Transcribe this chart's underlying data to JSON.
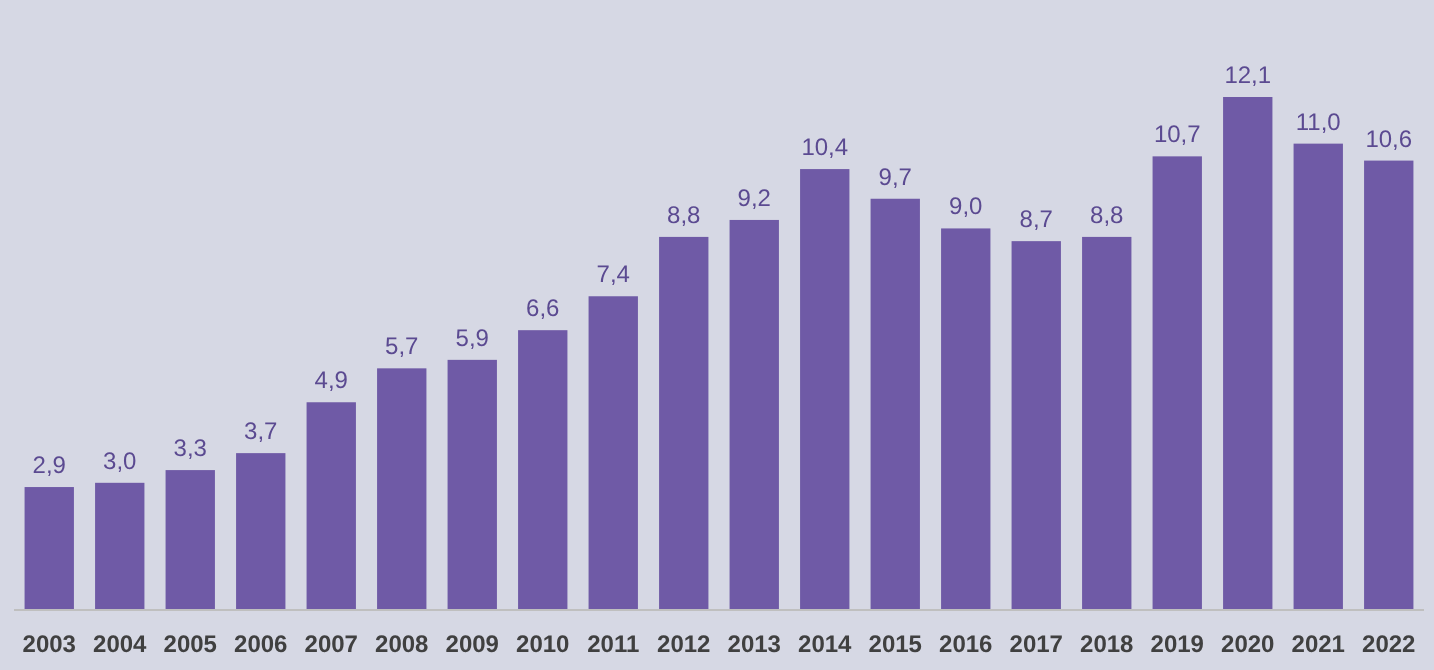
{
  "chart_data": {
    "type": "bar",
    "categories": [
      "2003",
      "2004",
      "2005",
      "2006",
      "2007",
      "2008",
      "2009",
      "2010",
      "2011",
      "2012",
      "2013",
      "2014",
      "2015",
      "2016",
      "2017",
      "2018",
      "2019",
      "2020",
      "2021",
      "2022"
    ],
    "values": [
      2.9,
      3.0,
      3.3,
      3.7,
      4.9,
      5.7,
      5.9,
      6.6,
      7.4,
      8.8,
      9.2,
      10.4,
      9.7,
      9.0,
      8.7,
      8.8,
      10.7,
      12.1,
      11.0,
      10.6
    ],
    "value_labels": [
      "2,9",
      "3,0",
      "3,3",
      "3,7",
      "4,9",
      "5,7",
      "5,9",
      "6,6",
      "7,4",
      "8,8",
      "9,2",
      "10,4",
      "9,7",
      "9,0",
      "8,7",
      "8,8",
      "10,7",
      "12,1",
      "11,0",
      "10,6"
    ],
    "color": "#6f5aa6"
  }
}
